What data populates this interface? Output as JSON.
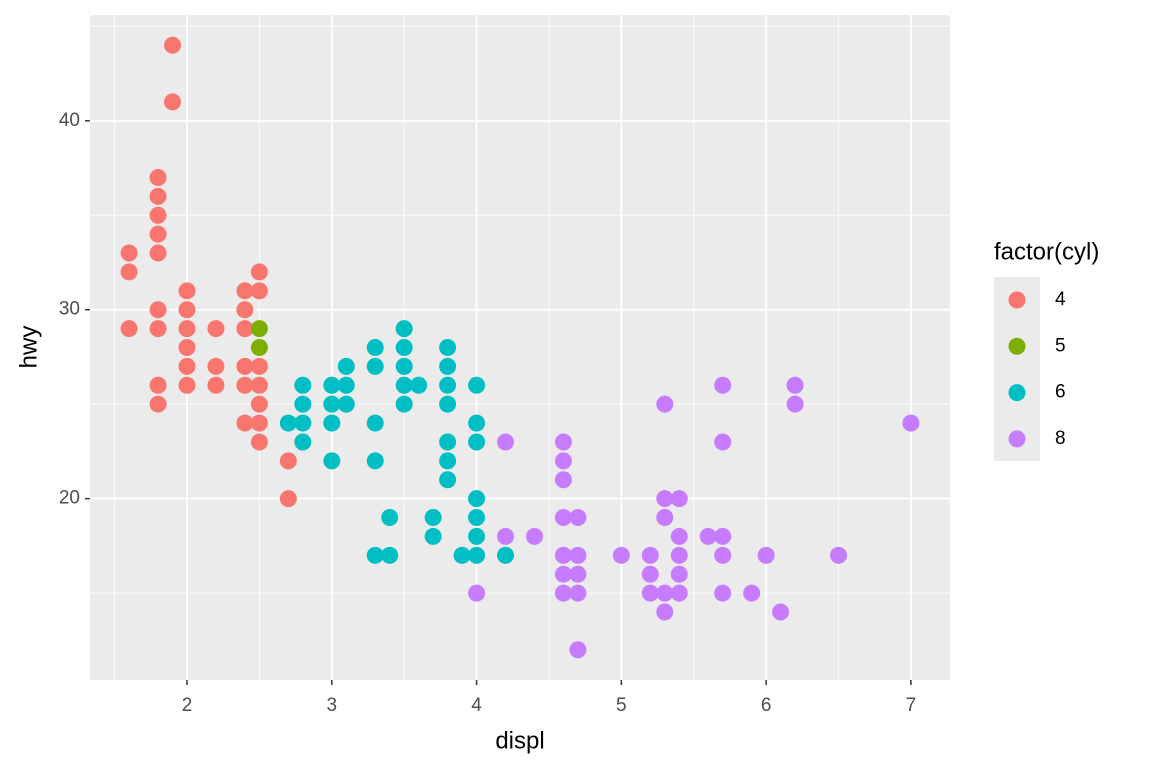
{
  "chart_data": {
    "type": "scatter",
    "x_label": "displ",
    "y_label": "hwy",
    "legend_title": "factor(cyl)",
    "legend": "right",
    "grid": true,
    "xlim": [
      1.33,
      7.27
    ],
    "ylim": [
      10.4,
      45.6
    ],
    "xticks": [
      2,
      3,
      4,
      5,
      6,
      7
    ],
    "yticks": [
      20,
      30,
      40
    ],
    "series": [
      {
        "name": "4",
        "color": "#F8766D",
        "x": [
          1.9,
          1.9,
          1.8,
          1.8,
          1.8,
          1.8,
          1.8,
          1.6,
          1.6,
          1.6,
          1.8,
          1.8,
          1.8,
          1.8,
          2.0,
          2.0,
          2.0,
          2.0,
          2.0,
          2.0,
          2.2,
          2.2,
          2.2,
          2.4,
          2.4,
          2.4,
          2.4,
          2.4,
          2.4,
          2.5,
          2.5,
          2.5,
          2.5,
          2.5,
          2.5,
          2.5,
          2.7,
          2.7
        ],
        "values": [
          44,
          41,
          37,
          36,
          35,
          34,
          33,
          33,
          32,
          29,
          30,
          29,
          26,
          25,
          31,
          30,
          29,
          28,
          27,
          26,
          29,
          27,
          26,
          31,
          30,
          29,
          27,
          26,
          24,
          32,
          31,
          27,
          26,
          25,
          24,
          23,
          22,
          20
        ]
      },
      {
        "name": "5",
        "color": "#7CAE00",
        "x": [
          2.5,
          2.5
        ],
        "values": [
          29,
          28
        ]
      },
      {
        "name": "6",
        "color": "#00BFC4",
        "x": [
          2.7,
          2.8,
          2.8,
          2.8,
          2.8,
          3.0,
          3.0,
          3.0,
          3.0,
          3.1,
          3.1,
          3.1,
          3.3,
          3.3,
          3.3,
          3.3,
          3.3,
          3.4,
          3.4,
          3.5,
          3.5,
          3.5,
          3.5,
          3.5,
          3.6,
          3.7,
          3.7,
          3.8,
          3.8,
          3.8,
          3.8,
          3.8,
          3.8,
          3.8,
          3.9,
          4.0,
          4.0,
          4.0,
          4.0,
          4.0,
          4.0,
          4.0,
          4.2
        ],
        "values": [
          24,
          26,
          25,
          24,
          23,
          26,
          25,
          24,
          22,
          27,
          26,
          25,
          28,
          27,
          24,
          22,
          17,
          19,
          17,
          29,
          28,
          27,
          26,
          25,
          26,
          19,
          18,
          28,
          27,
          26,
          25,
          23,
          22,
          21,
          17,
          26,
          24,
          23,
          20,
          19,
          18,
          17,
          17
        ]
      },
      {
        "name": "8",
        "color": "#C77CFF",
        "x": [
          4.0,
          4.2,
          4.2,
          4.4,
          4.6,
          4.6,
          4.6,
          4.6,
          4.6,
          4.6,
          4.6,
          4.7,
          4.7,
          4.7,
          4.7,
          4.7,
          5.0,
          5.2,
          5.2,
          5.2,
          5.3,
          5.3,
          5.3,
          5.3,
          5.3,
          5.4,
          5.4,
          5.4,
          5.4,
          5.4,
          5.6,
          5.7,
          5.7,
          5.7,
          5.7,
          5.7,
          5.9,
          6.0,
          6.1,
          6.2,
          6.2,
          6.5,
          7.0
        ],
        "values": [
          15,
          23,
          18,
          18,
          23,
          22,
          21,
          19,
          17,
          16,
          15,
          19,
          17,
          16,
          15,
          12,
          17,
          17,
          16,
          15,
          25,
          20,
          19,
          15,
          14,
          20,
          18,
          17,
          16,
          15,
          18,
          26,
          23,
          18,
          17,
          15,
          15,
          17,
          14,
          26,
          25,
          17,
          24
        ]
      }
    ]
  }
}
